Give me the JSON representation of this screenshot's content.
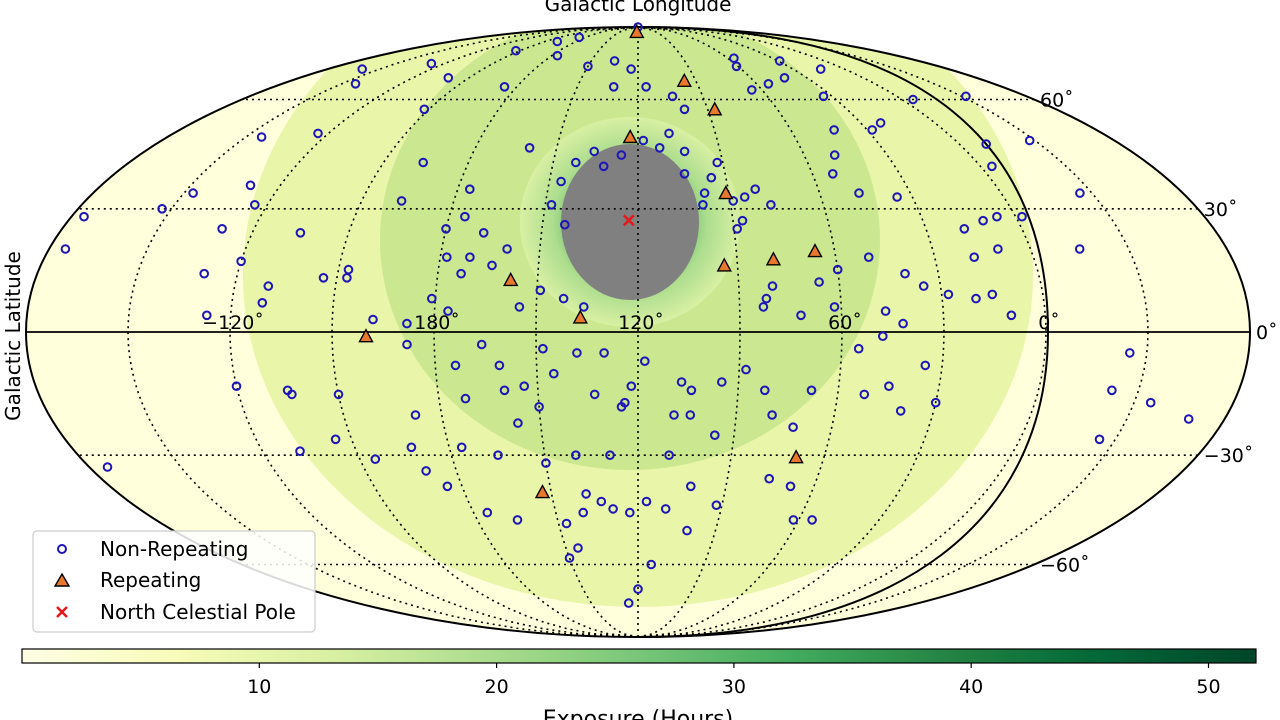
{
  "chart_data": {
    "type": "scatter",
    "projection": "mollweide",
    "title": "Galactic Longitude",
    "xlabel": "Galactic Longitude",
    "ylabel": "Galactic Latitude",
    "x_tick_labels": [
      {
        "lon": -120,
        "text": "−120˚"
      },
      {
        "lon": 180,
        "text": "180˚"
      },
      {
        "lon": 120,
        "text": "120˚"
      },
      {
        "lon": 60,
        "text": "60˚"
      },
      {
        "lon": 0,
        "text": "0˚"
      }
    ],
    "y_tick_labels": [
      {
        "lat": 60,
        "text": "60˚"
      },
      {
        "lat": 30,
        "text": "30˚"
      },
      {
        "lat": 0,
        "text": "0˚"
      },
      {
        "lat": -30,
        "text": "−30˚"
      },
      {
        "lat": -60,
        "text": "−60˚"
      }
    ],
    "grid": true,
    "legend": {
      "placement": "lower-left",
      "entries": [
        {
          "label": "Non-Repeating",
          "marker": "circle",
          "color": "#1c16b8"
        },
        {
          "label": "Repeating",
          "marker": "triangle",
          "color": "#e8782b"
        },
        {
          "label": "North Celestial Pole",
          "marker": "x",
          "color": "#e31a1c"
        }
      ]
    },
    "colorbar": {
      "label": "Exposure (Hours)",
      "min": 0,
      "max": 52,
      "ticks": [
        10,
        20,
        30,
        40,
        50
      ],
      "colors": [
        "#ffffe5",
        "#f7fcb9",
        "#d9f0a3",
        "#addd8e",
        "#78c679",
        "#41ab5d",
        "#238443",
        "#006837",
        "#004529"
      ]
    },
    "north_celestial_pole": {
      "lon": 122.9,
      "lat": 27.1
    },
    "repeating": [
      {
        "lon": 122.0,
        "lat": 86.0
      },
      {
        "lon": 96.0,
        "lat": 66.0
      },
      {
        "lon": 87.0,
        "lat": 57.0
      },
      {
        "lon": 123.0,
        "lat": 49.0
      },
      {
        "lon": 91.0,
        "lat": 34.0
      },
      {
        "lon": 94.0,
        "lat": 16.0
      },
      {
        "lon": 79.0,
        "lat": 17.5
      },
      {
        "lon": 66.0,
        "lat": 19.5
      },
      {
        "lon": 158.0,
        "lat": 12.5
      },
      {
        "lon": 137.0,
        "lat": 3.5
      },
      {
        "lon": 200.0,
        "lat": -1.0
      },
      {
        "lon": 69.0,
        "lat": -30.5
      },
      {
        "lon": 153.0,
        "lat": -39.5
      }
    ],
    "non_repeating": [
      [
        -65,
        20
      ],
      [
        -28,
        48
      ],
      [
        -26,
        34
      ],
      [
        -32,
        61
      ],
      [
        -22,
        -14
      ],
      [
        -64,
        28
      ],
      [
        -66,
        -33
      ],
      [
        -25,
        -5
      ],
      [
        178,
        18
      ],
      [
        188,
        -3
      ],
      [
        224,
        -15
      ],
      [
        250,
        25
      ],
      [
        250,
        14
      ],
      [
        230,
        11
      ],
      [
        240,
        17
      ],
      [
        231,
        7
      ],
      [
        247,
        4
      ],
      [
        244,
        50
      ],
      [
        264,
        49
      ],
      [
        263,
        65
      ],
      [
        248,
        72
      ],
      [
        280,
        70
      ],
      [
        273,
        30
      ],
      [
        267,
        34
      ],
      [
        250,
        36
      ],
      [
        244,
        31
      ],
      [
        225,
        24
      ],
      [
        197,
        32
      ],
      [
        196,
        42
      ],
      [
        176,
        35
      ],
      [
        160,
        46
      ],
      [
        148,
        31
      ],
      [
        143,
        26
      ],
      [
        146,
        37
      ],
      [
        142,
        42
      ],
      [
        126,
        44
      ],
      [
        132,
        41
      ],
      [
        136,
        45
      ],
      [
        118,
        48
      ],
      [
        108,
        50
      ],
      [
        112,
        46
      ],
      [
        103,
        45
      ],
      [
        104,
        39
      ],
      [
        95,
        38
      ],
      [
        98,
        34
      ],
      [
        99,
        31
      ],
      [
        89,
        25
      ],
      [
        87,
        27
      ],
      [
        89,
        32
      ],
      [
        85,
        33
      ],
      [
        81,
        35
      ],
      [
        77,
        31
      ],
      [
        92,
        42
      ],
      [
        100,
        57
      ],
      [
        104,
        61
      ],
      [
        116,
        64
      ],
      [
        124,
        70
      ],
      [
        132,
        64
      ],
      [
        135,
        73
      ],
      [
        150,
        71
      ],
      [
        176,
        75
      ],
      [
        186,
        64
      ],
      [
        212,
        57
      ],
      [
        221,
        67
      ],
      [
        213,
        77
      ],
      [
        198,
        81
      ],
      [
        168,
        90
      ],
      [
        187,
        83
      ],
      [
        56,
        74
      ],
      [
        61,
        71
      ],
      [
        65,
        63
      ],
      [
        54,
        65
      ],
      [
        42,
        67
      ],
      [
        34,
        61
      ],
      [
        29,
        73
      ],
      [
        14,
        70
      ],
      [
        22,
        53
      ],
      [
        28,
        51
      ],
      [
        43,
        51
      ],
      [
        49,
        44
      ],
      [
        53,
        39
      ],
      [
        47,
        34
      ],
      [
        35,
        33
      ],
      [
        18,
        25
      ],
      [
        11,
        27
      ],
      [
        6,
        28
      ],
      [
        -5,
        60
      ],
      [
        -10,
        47
      ],
      [
        -4,
        41
      ],
      [
        -2,
        28
      ],
      [
        -15,
        20
      ],
      [
        10,
        20
      ],
      [
        18,
        18
      ],
      [
        20,
        8
      ],
      [
        15,
        9
      ],
      [
        10,
        4
      ],
      [
        28,
        9
      ],
      [
        35,
        11
      ],
      [
        40,
        14
      ],
      [
        50,
        18
      ],
      [
        60,
        15
      ],
      [
        66,
        12
      ],
      [
        62,
        6
      ],
      [
        47,
        5
      ],
      [
        42,
        2
      ],
      [
        48,
        -1
      ],
      [
        55,
        -4
      ],
      [
        72,
        4
      ],
      [
        82,
        8
      ],
      [
        80,
        11
      ],
      [
        83,
        6
      ],
      [
        168,
        24
      ],
      [
        171,
        18
      ],
      [
        173,
        14
      ],
      [
        176,
        5
      ],
      [
        181,
        8
      ],
      [
        188,
        2
      ],
      [
        198,
        3
      ],
      [
        207,
        13
      ],
      [
        214,
        13
      ],
      [
        207,
        15
      ],
      [
        175,
        28
      ],
      [
        180,
        25
      ],
      [
        160,
        20
      ],
      [
        164,
        16
      ],
      [
        155,
        6
      ],
      [
        149,
        10
      ],
      [
        142,
        8
      ],
      [
        136,
        6
      ],
      [
        166,
        -3
      ],
      [
        161,
        -8
      ],
      [
        148,
        -4
      ],
      [
        130,
        -5
      ],
      [
        118,
        -7
      ],
      [
        107,
        -12
      ],
      [
        122,
        -13
      ],
      [
        104,
        -14
      ],
      [
        82,
        -14
      ],
      [
        68,
        -14
      ],
      [
        52,
        -15
      ],
      [
        45,
        -13
      ],
      [
        35,
        -8
      ],
      [
        30,
        -17
      ],
      [
        40,
        -19
      ],
      [
        72,
        -23
      ],
      [
        79,
        -20
      ],
      [
        109,
        -20
      ],
      [
        157,
        -22
      ],
      [
        150,
        -32
      ],
      [
        140,
        -30
      ],
      [
        129,
        -30
      ],
      [
        110,
        -30
      ],
      [
        102,
        -38
      ],
      [
        110,
        -44
      ],
      [
        101,
        -50
      ],
      [
        92,
        -43
      ],
      [
        117,
        -42
      ],
      [
        123,
        -45
      ],
      [
        129,
        -44
      ],
      [
        133,
        -42
      ],
      [
        138,
        -40
      ],
      [
        140,
        -45
      ],
      [
        147,
        -48
      ],
      [
        145,
        -55
      ],
      [
        150,
        -58
      ],
      [
        165,
        -47
      ],
      [
        175,
        -45
      ],
      [
        185,
        -38
      ],
      [
        190,
        -34
      ],
      [
        205,
        -31
      ],
      [
        215,
        -26
      ],
      [
        228,
        -29
      ],
      [
        225,
        -14
      ],
      [
        210,
        -15
      ],
      [
        188,
        -20
      ],
      [
        172,
        -16
      ],
      [
        174,
        -8
      ],
      [
        160,
        -14
      ],
      [
        176,
        -28
      ],
      [
        192,
        -28
      ],
      [
        165,
        -30
      ],
      [
        76,
        -36
      ],
      [
        68,
        -38
      ],
      [
        62,
        -47
      ],
      [
        55,
        -47
      ],
      [
        150,
        -18
      ],
      [
        124,
        -17
      ],
      [
        133,
        -15
      ],
      [
        125,
        -18
      ],
      [
        145,
        -10
      ],
      [
        96,
        -25
      ],
      [
        138,
        -5
      ],
      [
        154,
        -13
      ],
      [
        114,
        -60
      ],
      [
        120,
        -68
      ],
      [
        126,
        -73
      ],
      [
        104,
        -20
      ],
      [
        95,
        -12
      ],
      [
        88,
        -9
      ],
      [
        240,
        -13
      ],
      [
        -35,
        -17
      ],
      [
        -49,
        -21
      ],
      [
        -25,
        -26
      ]
    ]
  }
}
